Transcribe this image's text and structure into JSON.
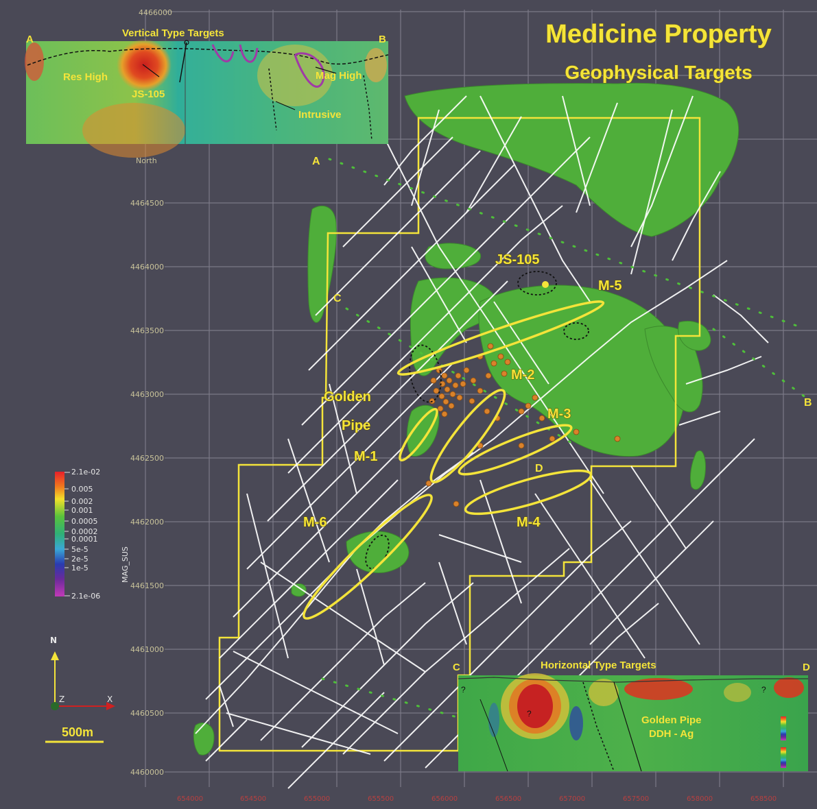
{
  "title": {
    "line1": "Medicine Property",
    "line2": "Geophysical Targets"
  },
  "north_label": "North",
  "y_ticks": [
    "4466000",
    "4464500",
    "4464000",
    "4463500",
    "4463000",
    "4462500",
    "4462000",
    "4461500",
    "4461000",
    "4460500",
    "4460000"
  ],
  "x_ticks": [
    "654000",
    "654500",
    "655000",
    "655500",
    "656000",
    "656500",
    "657000",
    "657500",
    "658000",
    "658500"
  ],
  "section_points": {
    "a": "A",
    "b": "B",
    "c": "C",
    "d": "D"
  },
  "targets": {
    "m1": "M-1",
    "m2": "M-2",
    "m3": "M-3",
    "m4": "M-4",
    "m5": "M-5",
    "m6": "M-6",
    "js105": "JS-105",
    "golden": "Golden",
    "pipe": "Pipe"
  },
  "vertical_inset": {
    "title": "Vertical Type Targets",
    "left_end": "A",
    "right_end": "B",
    "res_high": "Res High",
    "js105": "JS-105",
    "mag_high": "Mag High",
    "intrusive": "Intrusive"
  },
  "horizontal_inset": {
    "title": "Horizontal Type Targets",
    "left_end": "C",
    "right_end": "D",
    "label1": "Golden Pipe",
    "label2": "DDH - Ag",
    "q": "?"
  },
  "colorbar": {
    "name": "MAG_SUS",
    "ticks": [
      "2.1e-02",
      "0.005",
      "0.002",
      "0.001",
      "0.0005",
      "0.0002",
      "0.0001",
      "5e-5",
      "2e-5",
      "1e-5",
      "2.1e-06"
    ]
  },
  "axes_triad": {
    "n": "N",
    "z": "Z",
    "x": "X"
  },
  "scale_bar": "500m",
  "colors": {
    "background": "#4a4956",
    "accent": "#f4e43a",
    "anomaly": "#4fae3a",
    "faults": "#ffffff",
    "drillholes": "#d9822b"
  }
}
